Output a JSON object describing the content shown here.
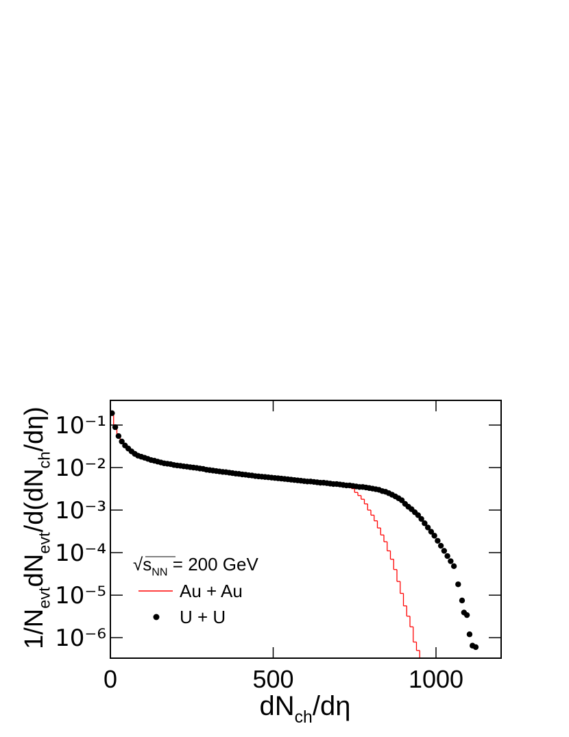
{
  "chart_data": {
    "type": "combo",
    "x_label": [
      {
        "text": "dN"
      },
      {
        "text": "ch",
        "sub": true
      },
      {
        "text": "/dη"
      }
    ],
    "y_label": [
      {
        "text": "1/N"
      },
      {
        "text": "evt",
        "sub": true
      },
      {
        "text": "dN"
      },
      {
        "text": "evt",
        "sub": true
      },
      {
        "text": "/d(dN"
      },
      {
        "text": "ch",
        "sub": true
      },
      {
        "text": "/dη)"
      }
    ],
    "legend_header": [
      {
        "text": "√"
      },
      {
        "text": "s"
      },
      {
        "text": "NN",
        "sub": true
      },
      {
        "text": " = 200 GeV"
      }
    ],
    "xlim": [
      0,
      1200
    ],
    "xticks": [
      0,
      500,
      1000
    ],
    "ylim": [
      3.3e-07,
      0.38
    ],
    "ylog": true,
    "yticks": [
      {
        "value": 0.1,
        "label": "10⁻¹"
      },
      {
        "value": 0.01,
        "label": "10⁻²"
      },
      {
        "value": 0.001,
        "label": "10⁻³"
      },
      {
        "value": 0.0001,
        "label": "10⁻⁴"
      },
      {
        "value": 1e-05,
        "label": "10⁻⁵"
      },
      {
        "value": 1e-06,
        "label": "10⁻⁶"
      }
    ],
    "series": [
      {
        "name": "Au + Au",
        "type": "step",
        "color": "#ff0000",
        "bins": [
          0,
          10,
          20,
          30,
          40,
          50,
          60,
          70,
          80,
          90,
          100,
          110,
          120,
          130,
          140,
          150,
          160,
          170,
          180,
          190,
          200,
          210,
          220,
          230,
          240,
          250,
          260,
          270,
          280,
          290,
          300,
          310,
          320,
          330,
          340,
          350,
          360,
          370,
          380,
          390,
          400,
          410,
          420,
          430,
          440,
          450,
          460,
          470,
          480,
          490,
          500,
          510,
          520,
          530,
          540,
          550,
          560,
          570,
          580,
          590,
          600,
          610,
          620,
          630,
          640,
          650,
          660,
          670,
          680,
          690,
          700,
          710,
          720,
          730,
          740,
          750,
          760,
          770,
          780,
          790,
          800,
          810,
          820,
          830,
          840,
          850,
          860,
          870,
          880,
          890,
          900,
          910,
          920,
          930,
          940,
          950,
          960,
          970,
          980,
          990,
          1000,
          1010,
          1020,
          1030,
          1040,
          1050,
          1060,
          1070,
          1080,
          1090,
          1100,
          1110,
          1120,
          1130,
          1140,
          1150,
          1160,
          1170,
          1180,
          1190,
          1200
        ],
        "values": [
          0.19,
          0.089,
          0.055,
          0.041,
          0.033,
          0.028,
          0.024,
          0.021,
          0.019,
          0.018,
          0.017,
          0.016,
          0.015,
          0.0145,
          0.0138,
          0.0132,
          0.0126,
          0.0123,
          0.012,
          0.0115,
          0.0112,
          0.011,
          0.0107,
          0.0105,
          0.0102,
          0.01,
          0.0098,
          0.0095,
          0.0093,
          0.0089,
          0.0087,
          0.0085,
          0.0083,
          0.0081,
          0.0079,
          0.0078,
          0.0076,
          0.0074,
          0.0072,
          0.0071,
          0.0069,
          0.0068,
          0.0066,
          0.0065,
          0.0063,
          0.0062,
          0.0061,
          0.006,
          0.0059,
          0.0058,
          0.0057,
          0.0056,
          0.0055,
          0.0054,
          0.0053,
          0.0052,
          0.0051,
          0.005,
          0.0049,
          0.0048,
          0.0047,
          0.0047,
          0.0046,
          0.0045,
          0.0044,
          0.0044,
          0.0043,
          0.0042,
          0.0041,
          0.0041,
          0.0041,
          0.0039,
          0.0037,
          0.0035,
          0.0032,
          0.0026,
          0.0022,
          0.0018,
          0.0014,
          0.001,
          0.00076,
          0.00056,
          0.00038,
          0.00026,
          0.00018,
          0.00011,
          7e-05,
          4e-05,
          2.1e-05,
          1.1e-05,
          5.6e-06,
          3.2e-06,
          1.8e-06,
          7.9e-07,
          5e-07,
          0,
          0,
          0,
          0,
          0,
          0,
          0,
          0,
          0,
          0,
          0,
          0,
          0,
          0,
          0,
          0,
          0,
          0,
          0,
          0,
          0,
          0,
          0,
          0,
          0
        ]
      },
      {
        "name": "U + U",
        "type": "scatter",
        "color": "#000000",
        "x": [
          5,
          15,
          25,
          35,
          45,
          55,
          65,
          75,
          85,
          95,
          105,
          115,
          125,
          135,
          145,
          155,
          165,
          175,
          185,
          195,
          205,
          215,
          225,
          235,
          245,
          255,
          265,
          275,
          285,
          295,
          305,
          315,
          325,
          335,
          345,
          355,
          365,
          375,
          385,
          395,
          405,
          415,
          425,
          435,
          445,
          455,
          465,
          475,
          485,
          495,
          505,
          515,
          525,
          535,
          545,
          555,
          565,
          575,
          585,
          595,
          605,
          615,
          625,
          635,
          645,
          655,
          665,
          675,
          685,
          695,
          705,
          715,
          725,
          735,
          745,
          755,
          765,
          775,
          785,
          795,
          805,
          815,
          825,
          835,
          845,
          855,
          865,
          875,
          885,
          895,
          905,
          915,
          925,
          935,
          945,
          955,
          965,
          975,
          985,
          995,
          1005,
          1015,
          1025,
          1035,
          1045,
          1055,
          1068,
          1080,
          1086,
          1095,
          1103,
          1112,
          1122
        ],
        "values": [
          0.19,
          0.089,
          0.055,
          0.041,
          0.033,
          0.028,
          0.024,
          0.021,
          0.019,
          0.018,
          0.017,
          0.016,
          0.015,
          0.0145,
          0.0138,
          0.0132,
          0.0126,
          0.0123,
          0.012,
          0.0115,
          0.0112,
          0.011,
          0.0107,
          0.0105,
          0.0102,
          0.01,
          0.0098,
          0.0095,
          0.0093,
          0.0089,
          0.0087,
          0.0085,
          0.0083,
          0.0081,
          0.0079,
          0.0078,
          0.0076,
          0.0074,
          0.0072,
          0.0071,
          0.0069,
          0.0068,
          0.0066,
          0.0065,
          0.0063,
          0.0062,
          0.0061,
          0.006,
          0.0059,
          0.0058,
          0.0057,
          0.0056,
          0.0055,
          0.0054,
          0.0053,
          0.0052,
          0.0051,
          0.005,
          0.0049,
          0.0048,
          0.0047,
          0.0047,
          0.0046,
          0.0045,
          0.0044,
          0.0044,
          0.0043,
          0.0042,
          0.0041,
          0.0041,
          0.004,
          0.0039,
          0.0038,
          0.0038,
          0.0037,
          0.0036,
          0.0035,
          0.0035,
          0.0034,
          0.0033,
          0.0032,
          0.0031,
          0.003,
          0.0028,
          0.0027,
          0.0025,
          0.0023,
          0.0021,
          0.0019,
          0.0017,
          0.0014,
          0.0012,
          0.00105,
          0.00089,
          0.00076,
          0.00062,
          0.00049,
          0.00039,
          0.00031,
          0.00025,
          0.00019,
          0.000145,
          0.00011,
          8.3e-05,
          6.3e-05,
          4.8e-05,
          1.8e-05,
          7.5e-06,
          3.9e-06,
          3.4e-06,
          1.2e-06,
          6.5e-07,
          6e-07
        ]
      }
    ]
  }
}
